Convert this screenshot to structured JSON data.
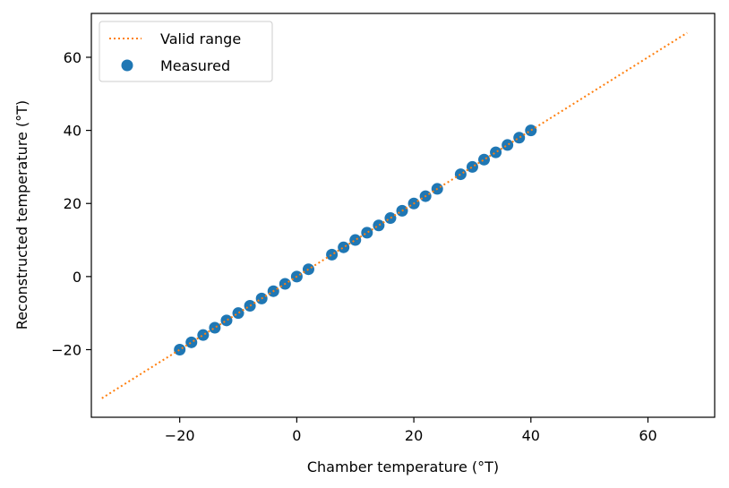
{
  "chart_data": {
    "type": "scatter",
    "xlabel": "Chamber temperature (°T)",
    "ylabel": "Reconstructed temperature (°T)",
    "xlim": [
      -35.1,
      71.4
    ],
    "ylim": [
      -38.5,
      72.0
    ],
    "xticks": [
      -20,
      0,
      20,
      40,
      60
    ],
    "yticks": [
      -20,
      0,
      20,
      40,
      60
    ],
    "xtick_labels": [
      "−20",
      "0",
      "20",
      "40",
      "60"
    ],
    "ytick_labels": [
      "−20",
      "0",
      "20",
      "40",
      "60"
    ],
    "grid": false,
    "legend": {
      "position": "upper-left"
    },
    "series": [
      {
        "name": "Valid range",
        "kind": "line",
        "style": "dotted",
        "color": "#ff7f0e",
        "x": [
          -33.3,
          66.7
        ],
        "y": [
          -33.3,
          66.7
        ]
      },
      {
        "name": "Measured",
        "kind": "scatter",
        "color": "#1f77b4",
        "x": [
          -20,
          -18,
          -16,
          -14,
          -12,
          -10,
          -8,
          -6,
          -4,
          -2,
          0,
          2,
          6,
          8,
          10,
          12,
          14,
          16,
          18,
          20,
          22,
          24,
          28,
          30,
          32,
          34,
          36,
          38,
          40
        ],
        "y": [
          -20,
          -18,
          -16,
          -14,
          -12,
          -10,
          -8,
          -6,
          -4,
          -2,
          0,
          2,
          6,
          8,
          10,
          12,
          14,
          16,
          18,
          20,
          22,
          24,
          28,
          30,
          32,
          34,
          36,
          38,
          40
        ]
      }
    ]
  }
}
